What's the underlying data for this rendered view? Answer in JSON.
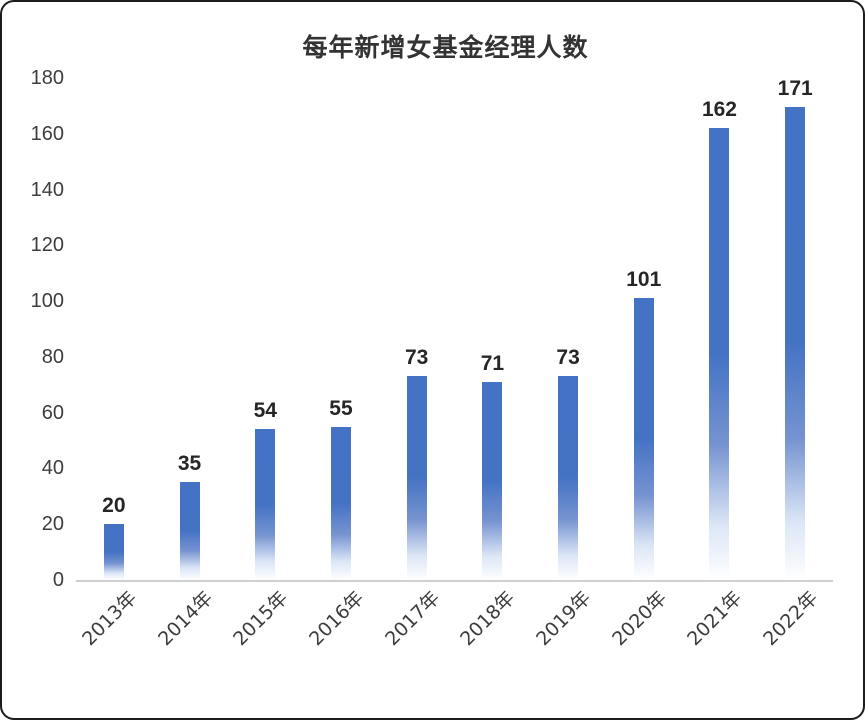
{
  "chart_data": {
    "type": "bar",
    "title": "每年新增女基金经理人数",
    "categories": [
      "2013年",
      "2014年",
      "2015年",
      "2016年",
      "2017年",
      "2018年",
      "2019年",
      "2020年",
      "2021年",
      "2022年"
    ],
    "values": [
      20,
      35,
      54,
      55,
      73,
      71,
      73,
      101,
      162,
      171
    ],
    "xlabel": "",
    "ylabel": "",
    "ylim": [
      0,
      180
    ],
    "ytick_step": 20,
    "grid": false,
    "legend": false,
    "bar_color": "#4472C4",
    "bar_gradient_fades_to_white_at_bottom": true,
    "value_labels_shown": true
  }
}
